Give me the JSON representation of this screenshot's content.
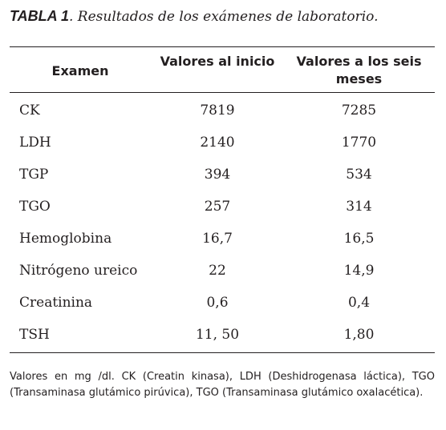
{
  "caption": {
    "label": "TABLA 1",
    "text": ". Resultados de los exámenes de laboratorio."
  },
  "table": {
    "headers": {
      "exam": "Examen",
      "initial": "Valores al inicio",
      "six_months": "Valores a los seis meses"
    },
    "rows": [
      {
        "exam": "CK",
        "initial": "7819",
        "six_months": "7285"
      },
      {
        "exam": "LDH",
        "initial": "2140",
        "six_months": "1770"
      },
      {
        "exam": "TGP",
        "initial": "394",
        "six_months": "534"
      },
      {
        "exam": "TGO",
        "initial": "257",
        "six_months": "314"
      },
      {
        "exam": "Hemoglobina",
        "initial": "16,7",
        "six_months": "16,5"
      },
      {
        "exam": "Nitrógeno ureico",
        "initial": "22",
        "six_months": "14,9"
      },
      {
        "exam": "Creatinina",
        "initial": "0,6",
        "six_months": "0,4"
      },
      {
        "exam": "TSH",
        "initial": "11, 50",
        "six_months": "1,80"
      }
    ]
  },
  "note": "Valores en mg /dl. CK (Creatin kinasa), LDH (Deshidrogenasa láctica), TGO (Transaminasa glutámico pirúvica), TGO (Transaminasa glutámico oxalacética)."
}
